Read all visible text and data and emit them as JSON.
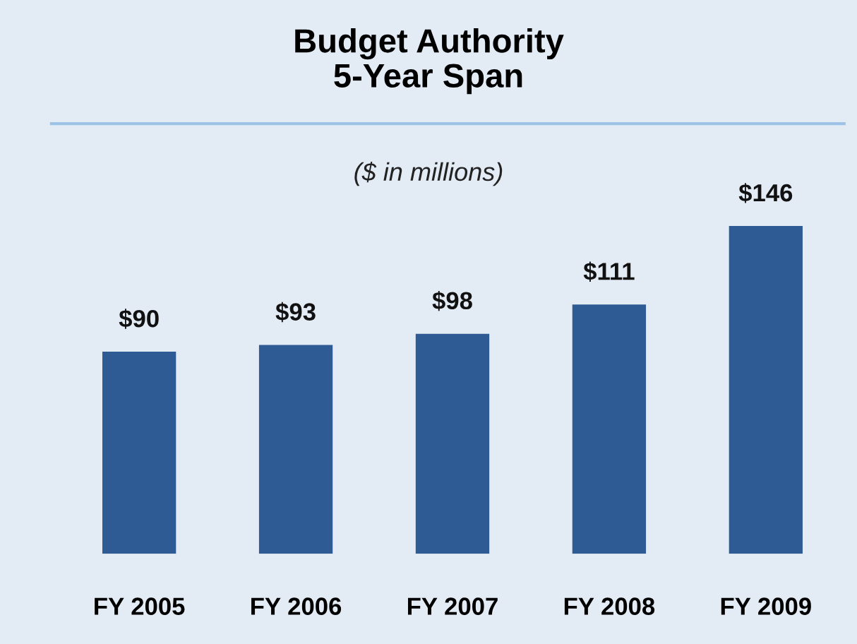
{
  "chart_data": {
    "type": "bar",
    "title": "Budget Authority\n5-Year Span",
    "subtitle": "($ in millions)",
    "categories": [
      "FY 2005",
      "FY 2006",
      "FY 2007",
      "FY 2008",
      "FY 2009"
    ],
    "values": [
      90,
      93,
      98,
      111,
      146
    ],
    "value_labels": [
      "$90",
      "$93",
      "$98",
      "$111",
      "$146"
    ],
    "color": "#2e5b93",
    "grid": false,
    "legend": false
  }
}
